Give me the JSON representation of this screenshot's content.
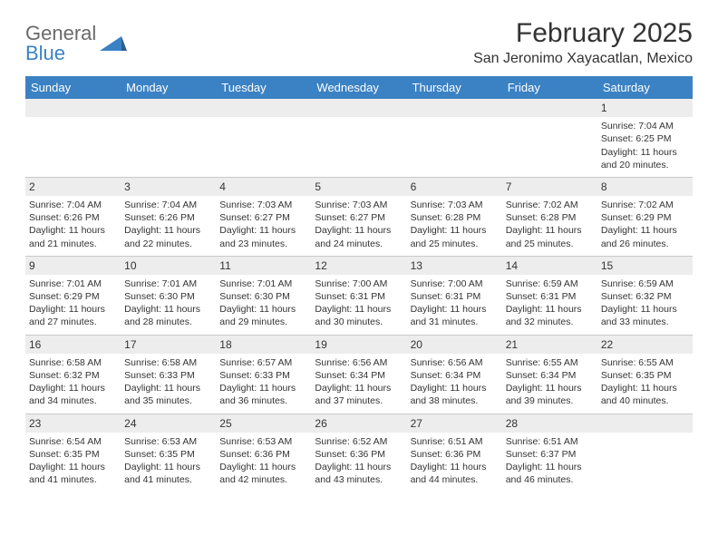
{
  "logo": {
    "top": "General",
    "bottom": "Blue"
  },
  "title": "February 2025",
  "location": "San Jeronimo Xayacatlan, Mexico",
  "colors": {
    "header_bg": "#3b82c4",
    "header_text": "#ffffff",
    "daynum_bg": "#ededed",
    "text": "#333333",
    "rule": "#c8c8c8",
    "logo_gray": "#6a6a6a",
    "logo_blue": "#3b82c4"
  },
  "day_names": [
    "Sunday",
    "Monday",
    "Tuesday",
    "Wednesday",
    "Thursday",
    "Friday",
    "Saturday"
  ],
  "weeks": [
    [
      null,
      null,
      null,
      null,
      null,
      null,
      {
        "n": "1",
        "sr": "7:04 AM",
        "ss": "6:25 PM",
        "dl": "11 hours and 20 minutes."
      }
    ],
    [
      {
        "n": "2",
        "sr": "7:04 AM",
        "ss": "6:26 PM",
        "dl": "11 hours and 21 minutes."
      },
      {
        "n": "3",
        "sr": "7:04 AM",
        "ss": "6:26 PM",
        "dl": "11 hours and 22 minutes."
      },
      {
        "n": "4",
        "sr": "7:03 AM",
        "ss": "6:27 PM",
        "dl": "11 hours and 23 minutes."
      },
      {
        "n": "5",
        "sr": "7:03 AM",
        "ss": "6:27 PM",
        "dl": "11 hours and 24 minutes."
      },
      {
        "n": "6",
        "sr": "7:03 AM",
        "ss": "6:28 PM",
        "dl": "11 hours and 25 minutes."
      },
      {
        "n": "7",
        "sr": "7:02 AM",
        "ss": "6:28 PM",
        "dl": "11 hours and 25 minutes."
      },
      {
        "n": "8",
        "sr": "7:02 AM",
        "ss": "6:29 PM",
        "dl": "11 hours and 26 minutes."
      }
    ],
    [
      {
        "n": "9",
        "sr": "7:01 AM",
        "ss": "6:29 PM",
        "dl": "11 hours and 27 minutes."
      },
      {
        "n": "10",
        "sr": "7:01 AM",
        "ss": "6:30 PM",
        "dl": "11 hours and 28 minutes."
      },
      {
        "n": "11",
        "sr": "7:01 AM",
        "ss": "6:30 PM",
        "dl": "11 hours and 29 minutes."
      },
      {
        "n": "12",
        "sr": "7:00 AM",
        "ss": "6:31 PM",
        "dl": "11 hours and 30 minutes."
      },
      {
        "n": "13",
        "sr": "7:00 AM",
        "ss": "6:31 PM",
        "dl": "11 hours and 31 minutes."
      },
      {
        "n": "14",
        "sr": "6:59 AM",
        "ss": "6:31 PM",
        "dl": "11 hours and 32 minutes."
      },
      {
        "n": "15",
        "sr": "6:59 AM",
        "ss": "6:32 PM",
        "dl": "11 hours and 33 minutes."
      }
    ],
    [
      {
        "n": "16",
        "sr": "6:58 AM",
        "ss": "6:32 PM",
        "dl": "11 hours and 34 minutes."
      },
      {
        "n": "17",
        "sr": "6:58 AM",
        "ss": "6:33 PM",
        "dl": "11 hours and 35 minutes."
      },
      {
        "n": "18",
        "sr": "6:57 AM",
        "ss": "6:33 PM",
        "dl": "11 hours and 36 minutes."
      },
      {
        "n": "19",
        "sr": "6:56 AM",
        "ss": "6:34 PM",
        "dl": "11 hours and 37 minutes."
      },
      {
        "n": "20",
        "sr": "6:56 AM",
        "ss": "6:34 PM",
        "dl": "11 hours and 38 minutes."
      },
      {
        "n": "21",
        "sr": "6:55 AM",
        "ss": "6:34 PM",
        "dl": "11 hours and 39 minutes."
      },
      {
        "n": "22",
        "sr": "6:55 AM",
        "ss": "6:35 PM",
        "dl": "11 hours and 40 minutes."
      }
    ],
    [
      {
        "n": "23",
        "sr": "6:54 AM",
        "ss": "6:35 PM",
        "dl": "11 hours and 41 minutes."
      },
      {
        "n": "24",
        "sr": "6:53 AM",
        "ss": "6:35 PM",
        "dl": "11 hours and 41 minutes."
      },
      {
        "n": "25",
        "sr": "6:53 AM",
        "ss": "6:36 PM",
        "dl": "11 hours and 42 minutes."
      },
      {
        "n": "26",
        "sr": "6:52 AM",
        "ss": "6:36 PM",
        "dl": "11 hours and 43 minutes."
      },
      {
        "n": "27",
        "sr": "6:51 AM",
        "ss": "6:36 PM",
        "dl": "11 hours and 44 minutes."
      },
      {
        "n": "28",
        "sr": "6:51 AM",
        "ss": "6:37 PM",
        "dl": "11 hours and 46 minutes."
      },
      null
    ]
  ],
  "labels": {
    "sunrise": "Sunrise:",
    "sunset": "Sunset:",
    "daylight": "Daylight:"
  }
}
